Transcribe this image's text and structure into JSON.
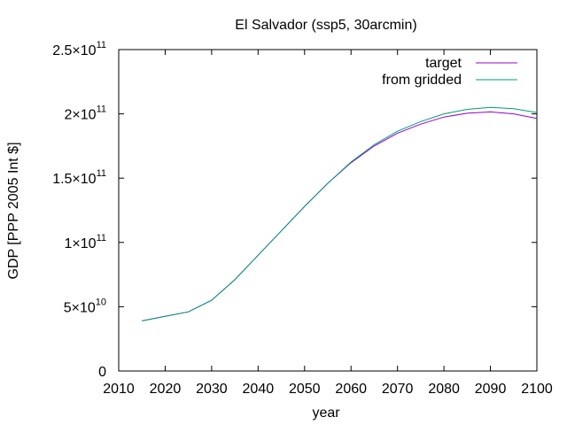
{
  "chart_data": {
    "type": "line",
    "title": "El Salvador (ssp5, 30arcmin)",
    "xlabel": "year",
    "ylabel": "GDP [PPP 2005 Int $]",
    "xlim": [
      2010,
      2100
    ],
    "ylim": [
      0,
      250000000000
    ],
    "x_ticks": [
      "2010",
      "2020",
      "2030",
      "2040",
      "2050",
      "2060",
      "2070",
      "2080",
      "2090",
      "2100"
    ],
    "y_ticks": [
      {
        "value": 0,
        "mantissa": "0",
        "exponent": ""
      },
      {
        "value": 50000000000,
        "mantissa": "5×10",
        "exponent": "10"
      },
      {
        "value": 100000000000,
        "mantissa": "1×10",
        "exponent": "11"
      },
      {
        "value": 150000000000,
        "mantissa": "1.5×10",
        "exponent": "11"
      },
      {
        "value": 200000000000,
        "mantissa": "2×10",
        "exponent": "11"
      },
      {
        "value": 250000000000,
        "mantissa": "2.5×10",
        "exponent": "11"
      }
    ],
    "grid": false,
    "legend_position": "top-right",
    "series": [
      {
        "name": "target",
        "color": "#9400d3",
        "x": [
          2015,
          2020,
          2025,
          2030,
          2035,
          2040,
          2045,
          2050,
          2055,
          2060,
          2065,
          2070,
          2075,
          2080,
          2085,
          2090,
          2095,
          2100
        ],
        "y": [
          39000000000,
          42500000000,
          46000000000,
          55000000000,
          71000000000,
          90000000000,
          109000000000,
          128000000000,
          146000000000,
          162000000000,
          175000000000,
          185000000000,
          192000000000,
          197500000000,
          200500000000,
          201500000000,
          200000000000,
          196500000000
        ]
      },
      {
        "name": "from gridded",
        "color": "#009e73",
        "x": [
          2015,
          2020,
          2025,
          2030,
          2035,
          2040,
          2045,
          2050,
          2055,
          2060,
          2065,
          2070,
          2075,
          2080,
          2085,
          2090,
          2095,
          2100
        ],
        "y": [
          39000000000,
          42500000000,
          46000000000,
          55000000000,
          71000000000,
          90000000000,
          109000000000,
          128000000000,
          146000000000,
          162500000000,
          176000000000,
          186500000000,
          194000000000,
          200000000000,
          203500000000,
          205000000000,
          204000000000,
          201000000000
        ]
      }
    ]
  }
}
